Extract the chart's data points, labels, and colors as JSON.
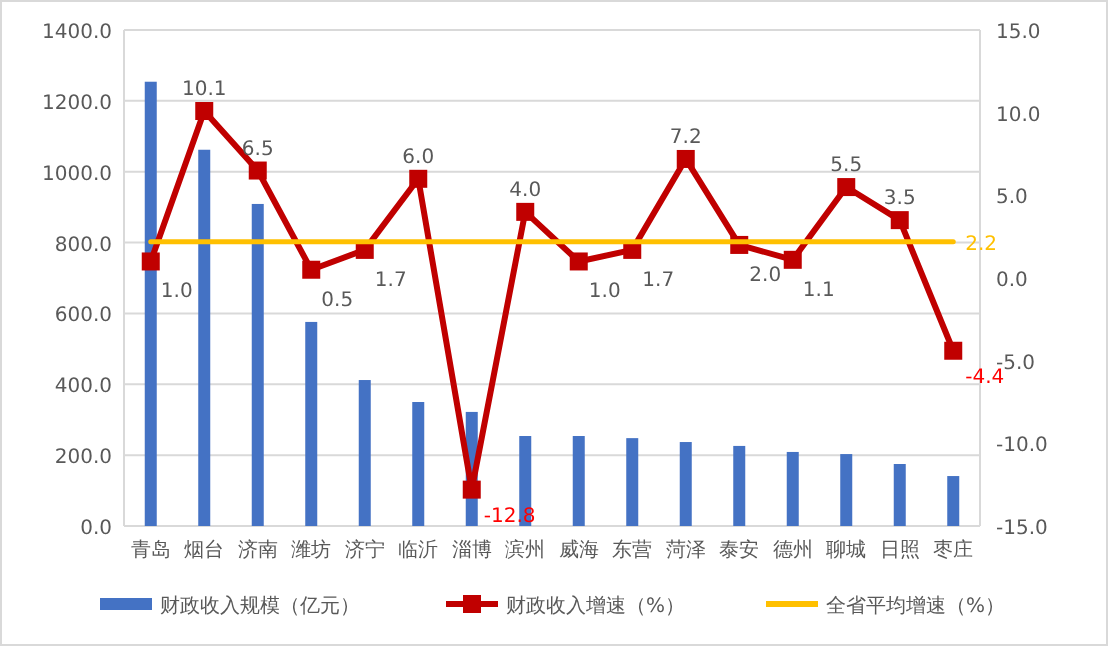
{
  "chart_data": {
    "type": "bar",
    "categories": [
      "青岛",
      "烟台",
      "济南",
      "潍坊",
      "济宁",
      "临沂",
      "淄博",
      "滨州",
      "威海",
      "东营",
      "菏泽",
      "泰安",
      "德州",
      "聊城",
      "日照",
      "枣庄"
    ],
    "series": [
      {
        "name": "财政收入规模（亿元）",
        "color": "#4472c4",
        "values": [
          1254,
          1062,
          909,
          576,
          412,
          350,
          322,
          254,
          254,
          248,
          237,
          226,
          209,
          203,
          175,
          141
        ]
      },
      {
        "name": "财政收入增速（%）",
        "type": "line",
        "axis": "y2",
        "color": "#c00000",
        "marker": "square",
        "values": [
          1.0,
          10.1,
          6.5,
          0.5,
          1.7,
          6.0,
          -12.8,
          4.0,
          1.0,
          1.7,
          7.2,
          2.0,
          1.1,
          5.5,
          3.5,
          -4.4
        ],
        "value_labels": [
          "1.0",
          "10.1",
          "6.5",
          "0.5",
          "1.7",
          "6.0",
          "-12.8",
          "4.0",
          "1.0",
          "1.7",
          "7.2",
          "2.0",
          "1.1",
          "5.5",
          "3.5",
          "-4.4"
        ]
      },
      {
        "name": "全省平均增速（%）",
        "type": "line",
        "axis": "y2",
        "color": "#ffc000",
        "marker": "none",
        "values": [
          2.2,
          2.2,
          2.2,
          2.2,
          2.2,
          2.2,
          2.2,
          2.2,
          2.2,
          2.2,
          2.2,
          2.2,
          2.2,
          2.2,
          2.2,
          2.2
        ],
        "value_labels": [
          null,
          null,
          null,
          null,
          null,
          null,
          null,
          null,
          null,
          null,
          null,
          null,
          null,
          null,
          null,
          "2.2"
        ]
      }
    ],
    "ylim": [
      0,
      1400
    ],
    "yticks": [
      {
        "value": 0,
        "label": "0.0"
      },
      {
        "value": 200,
        "label": "200.0"
      },
      {
        "value": 400,
        "label": "400.0"
      },
      {
        "value": 600,
        "label": "600.0"
      },
      {
        "value": 800,
        "label": "800.0"
      },
      {
        "value": 1000,
        "label": "1000.0"
      },
      {
        "value": 1200,
        "label": "1200.0"
      },
      {
        "value": 1400,
        "label": "1400.0"
      }
    ],
    "y2lim": [
      -15,
      15
    ],
    "y2ticks": [
      {
        "value": -15,
        "label": "-15.0"
      },
      {
        "value": -10,
        "label": "-10.0"
      },
      {
        "value": -5,
        "label": "-5.0"
      },
      {
        "value": 0,
        "label": "0.0"
      },
      {
        "value": 5,
        "label": "5.0"
      },
      {
        "value": 10,
        "label": "10.0"
      },
      {
        "value": 15,
        "label": "15.0"
      }
    ],
    "grid": "y",
    "legend": "bottom"
  }
}
